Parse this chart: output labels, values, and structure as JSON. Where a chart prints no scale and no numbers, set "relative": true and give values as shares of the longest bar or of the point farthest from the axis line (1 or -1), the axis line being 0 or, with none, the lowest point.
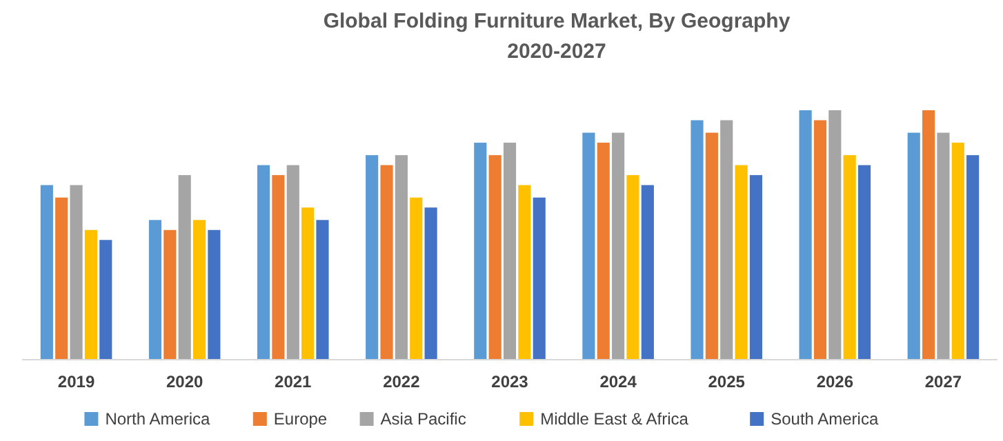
{
  "chart_data": {
    "type": "bar",
    "title": "Global Folding Furniture Market, By Geography",
    "subtitle": "2020-2027",
    "relative": true,
    "legend": "bottom",
    "grid": false,
    "categories": [
      "2019",
      "2020",
      "2021",
      "2022",
      "2023",
      "2024",
      "2025",
      "2026",
      "2027"
    ],
    "series": [
      {
        "name": "North America",
        "color": "#5b9bd5",
        "values": [
          0.7,
          0.56,
          0.78,
          0.82,
          0.87,
          0.91,
          0.96,
          1,
          0.91
        ]
      },
      {
        "name": "Europe",
        "color": "#ed7d31",
        "values": [
          0.65,
          0.52,
          0.74,
          0.78,
          0.82,
          0.87,
          0.91,
          0.96,
          1
        ]
      },
      {
        "name": "Asia Pacific",
        "color": "#a5a5a5",
        "values": [
          0.7,
          0.74,
          0.78,
          0.82,
          0.87,
          0.91,
          0.96,
          1,
          0.91
        ]
      },
      {
        "name": "Middle East & Africa",
        "color": "#ffc000",
        "values": [
          0.52,
          0.56,
          0.61,
          0.65,
          0.7,
          0.74,
          0.78,
          0.82,
          0.87
        ]
      },
      {
        "name": "South America",
        "color": "#4472c4",
        "values": [
          0.48,
          0.52,
          0.56,
          0.61,
          0.65,
          0.7,
          0.74,
          0.78,
          0.82
        ]
      }
    ]
  }
}
